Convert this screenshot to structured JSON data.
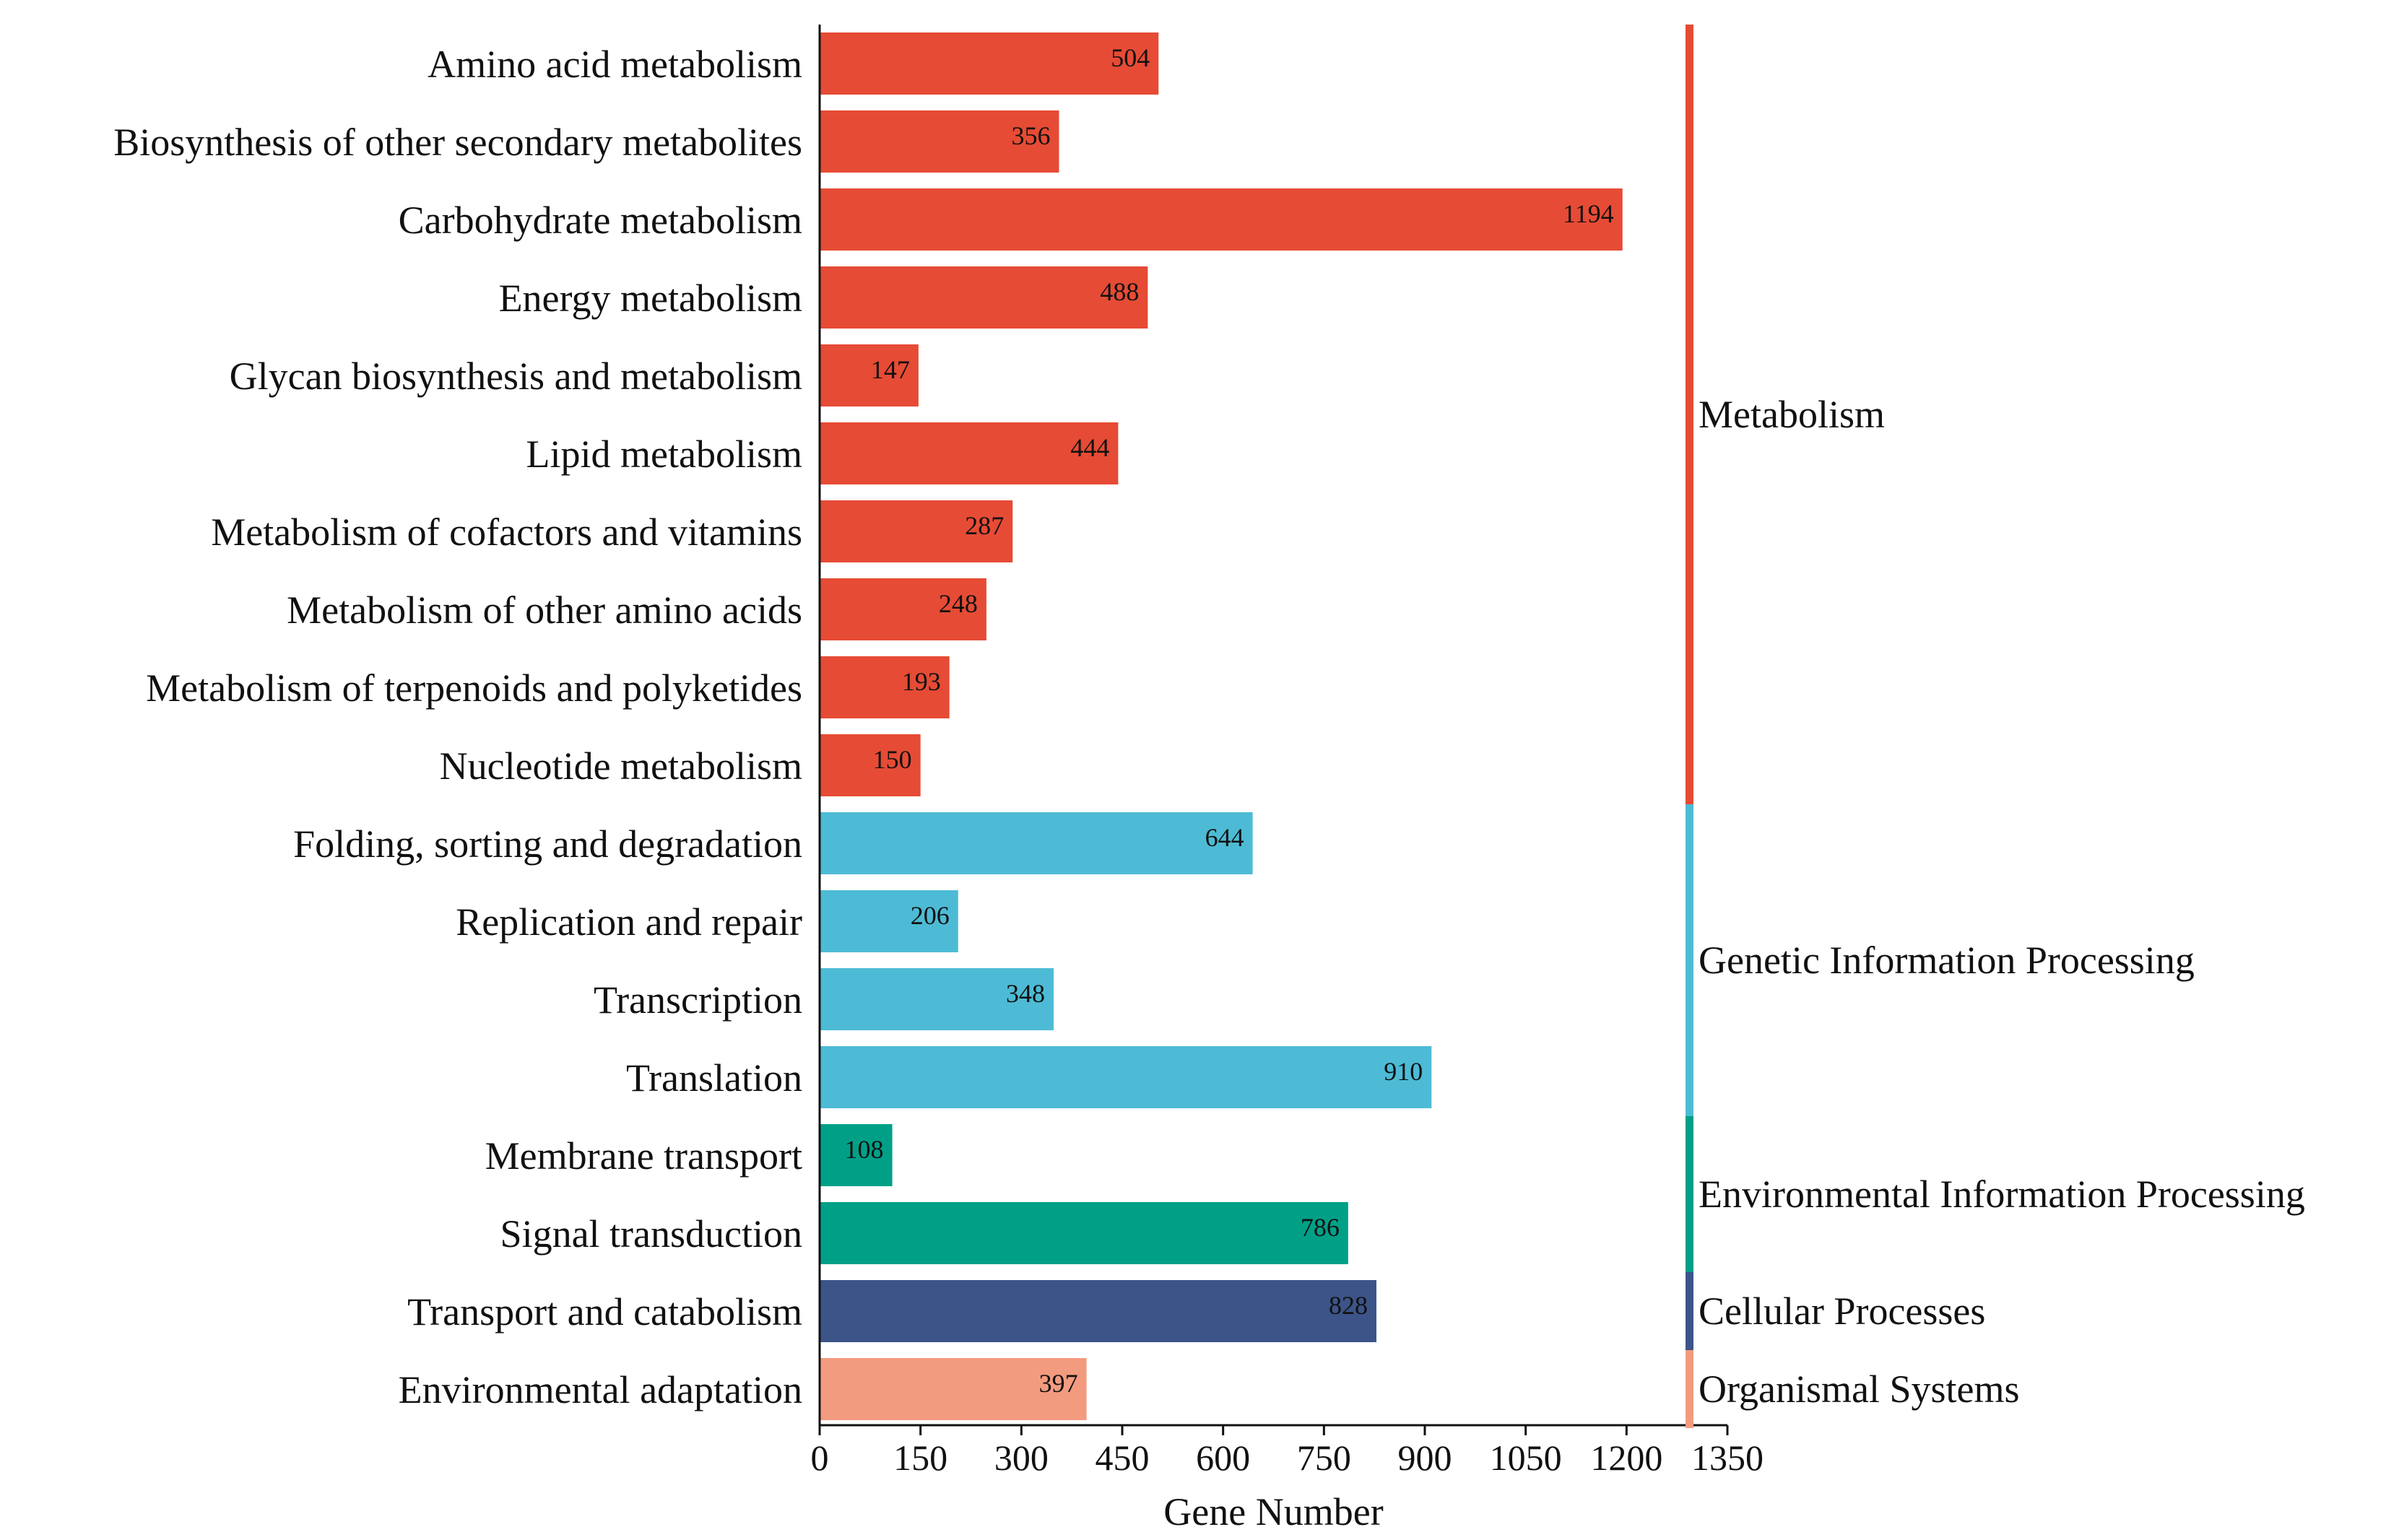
{
  "chart_data": {
    "type": "bar",
    "orientation": "horizontal",
    "xlabel": "Gene Number",
    "xlim": [
      0,
      1350
    ],
    "xticks": [
      0,
      150,
      300,
      450,
      600,
      750,
      900,
      1050,
      1200,
      1350
    ],
    "xtick_labels": [
      "0",
      "150",
      "300",
      "450",
      "600",
      "750",
      "900",
      "1050",
      "1200",
      "1350"
    ],
    "categories": [
      "Amino acid metabolism",
      "Biosynthesis of other secondary metabolites",
      "Carbohydrate metabolism",
      "Energy metabolism",
      "Glycan biosynthesis and metabolism",
      "Lipid metabolism",
      "Metabolism of cofactors and vitamins",
      "Metabolism of other amino acids",
      "Metabolism of terpenoids and polyketides",
      "Nucleotide metabolism",
      "Folding, sorting and degradation",
      "Replication and repair",
      "Transcription",
      "Translation",
      "Membrane transport",
      "Signal transduction",
      "Transport and catabolism",
      "Environmental adaptation"
    ],
    "values": [
      504,
      356,
      1194,
      488,
      147,
      444,
      287,
      248,
      193,
      150,
      644,
      206,
      348,
      910,
      108,
      786,
      828,
      397
    ],
    "value_labels": [
      "504",
      "356",
      "1194",
      "488",
      "147",
      "444",
      "287",
      "248",
      "193",
      "150",
      "644",
      "206",
      "348",
      "910",
      "108",
      "786",
      "828",
      "397"
    ],
    "groups": [
      {
        "name": "Metabolism",
        "start": 0,
        "end": 9,
        "color": "#E64B35"
      },
      {
        "name": "Genetic Information Processing",
        "start": 10,
        "end": 13,
        "color": "#4DBBD5"
      },
      {
        "name": "Environmental Information Processing",
        "start": 14,
        "end": 15,
        "color": "#00A087"
      },
      {
        "name": "Cellular Processes",
        "start": 16,
        "end": 16,
        "color": "#3C5488"
      },
      {
        "name": "Organismal Systems",
        "start": 17,
        "end": 17,
        "color": "#F39B7F"
      }
    ]
  }
}
